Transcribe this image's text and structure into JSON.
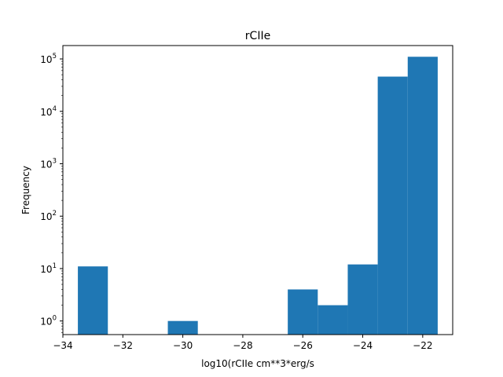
{
  "chart_data": {
    "type": "bar",
    "title": "rCIIe",
    "xlabel": "log10(rCIIe cm**3*erg/s",
    "ylabel": "Frequency",
    "xlim": [
      -34,
      -21
    ],
    "ylim": [
      0.55,
      180000
    ],
    "yscale": "log",
    "grid": false,
    "color": "#1f77b4",
    "x_ticks": [
      {
        "value": -34,
        "label": "−34"
      },
      {
        "value": -32,
        "label": "−32"
      },
      {
        "value": -30,
        "label": "−30"
      },
      {
        "value": -28,
        "label": "−28"
      },
      {
        "value": -26,
        "label": "−26"
      },
      {
        "value": -24,
        "label": "−24"
      },
      {
        "value": -22,
        "label": "−22"
      }
    ],
    "y_ticks": [
      {
        "value": 1,
        "base": "10",
        "exp": "0"
      },
      {
        "value": 10,
        "base": "10",
        "exp": "1"
      },
      {
        "value": 100,
        "base": "10",
        "exp": "2"
      },
      {
        "value": 1000,
        "base": "10",
        "exp": "3"
      },
      {
        "value": 10000,
        "base": "10",
        "exp": "4"
      },
      {
        "value": 100000,
        "base": "10",
        "exp": "5"
      }
    ],
    "bins": [
      {
        "x0": -33.5,
        "x1": -32.5,
        "value": 11
      },
      {
        "x0": -30.5,
        "x1": -29.5,
        "value": 1
      },
      {
        "x0": -26.5,
        "x1": -25.5,
        "value": 4
      },
      {
        "x0": -25.5,
        "x1": -24.5,
        "value": 2
      },
      {
        "x0": -24.5,
        "x1": -23.5,
        "value": 12
      },
      {
        "x0": -23.5,
        "x1": -22.5,
        "value": 46000
      },
      {
        "x0": -22.5,
        "x1": -21.5,
        "value": 110000
      }
    ]
  }
}
